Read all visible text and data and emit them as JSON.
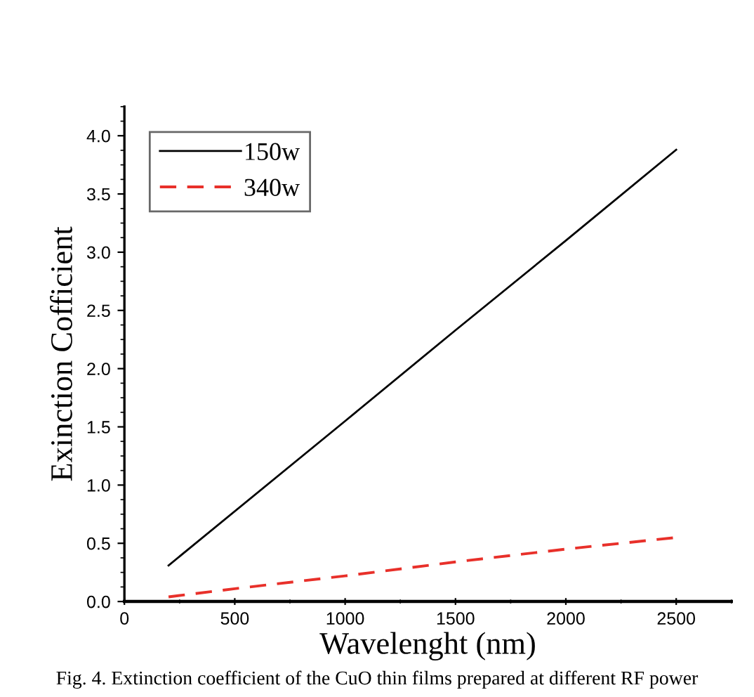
{
  "chart_data": {
    "type": "line",
    "xlabel": "Wavelenght (nm)",
    "ylabel": "Exinction Cofficient",
    "series": [
      {
        "name": "150w",
        "color": "#000000",
        "line_style": "solid",
        "x": [
          200,
          1000,
          1500,
          2000,
          2500
        ],
        "values": [
          0.31,
          1.55,
          2.33,
          3.1,
          3.88
        ]
      },
      {
        "name": "340w",
        "color": "#e8302a",
        "line_style": "dashed",
        "x": [
          200,
          500,
          1000,
          1500,
          2000,
          2500
        ],
        "values": [
          0.04,
          0.11,
          0.22,
          0.34,
          0.45,
          0.55
        ]
      }
    ],
    "xlim": [
      0,
      2750
    ],
    "xticks": [
      0,
      500,
      1000,
      1500,
      2000,
      2500
    ],
    "ylim": [
      0,
      4.25
    ],
    "yticks": [
      {
        "value": 0,
        "label": "0.0"
      },
      0.5,
      {
        "value": 1,
        "label": "1.0"
      },
      1.5,
      {
        "value": 2,
        "label": "2.0"
      },
      2.5,
      {
        "value": 3,
        "label": "3.0"
      },
      3.5,
      {
        "value": 4,
        "label": "4.0"
      }
    ],
    "grid": false,
    "legend": "top left",
    "annotations": [
      "Fig. 4. Extinction coefficient of the CuO thin films prepared at different RF power"
    ]
  }
}
